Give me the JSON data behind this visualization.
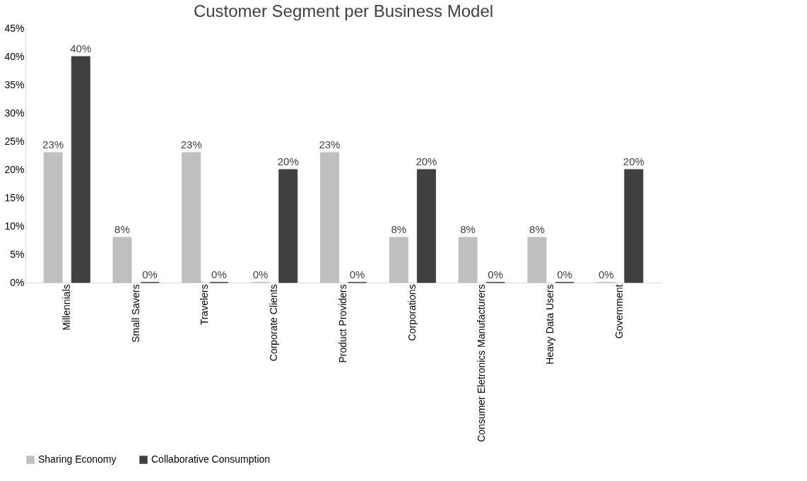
{
  "chart_data": {
    "type": "bar",
    "title": "Customer Segment per Business Model",
    "categories": [
      "Millennials",
      "Small Savers",
      "Travelers",
      "Corporate Clients",
      "Product Providers",
      "Corporations",
      "Consumer Eletronics Manufacturers",
      "Heavy Data Users",
      "Government"
    ],
    "series": [
      {
        "name": "Sharing Economy",
        "color": "#bfbfbf",
        "values": [
          23,
          8,
          23,
          0,
          23,
          8,
          8,
          8,
          0
        ],
        "value_labels": [
          "23%",
          "8%",
          "23%",
          "0%",
          "23%",
          "8%",
          "8%",
          "8%",
          "0%"
        ]
      },
      {
        "name": "Collaborative Consumption",
        "color": "#404040",
        "values": [
          40,
          0,
          0,
          20,
          0,
          20,
          0,
          0,
          20
        ],
        "value_labels": [
          "40%",
          "0%",
          "0%",
          "20%",
          "0%",
          "20%",
          "0%",
          "0%",
          "20%"
        ]
      }
    ],
    "ylim": [
      0,
      45
    ],
    "yticks": [
      {
        "value": 0,
        "label": "0%"
      },
      {
        "value": 5,
        "label": "5%"
      },
      {
        "value": 10,
        "label": "10%"
      },
      {
        "value": 15,
        "label": "15%"
      },
      {
        "value": 20,
        "label": "20%"
      },
      {
        "value": 25,
        "label": "25%"
      },
      {
        "value": 30,
        "label": "30%"
      },
      {
        "value": 35,
        "label": "35%"
      },
      {
        "value": 40,
        "label": "40%"
      },
      {
        "value": 45,
        "label": "45%"
      }
    ],
    "grid": false,
    "legend": "bottom"
  }
}
